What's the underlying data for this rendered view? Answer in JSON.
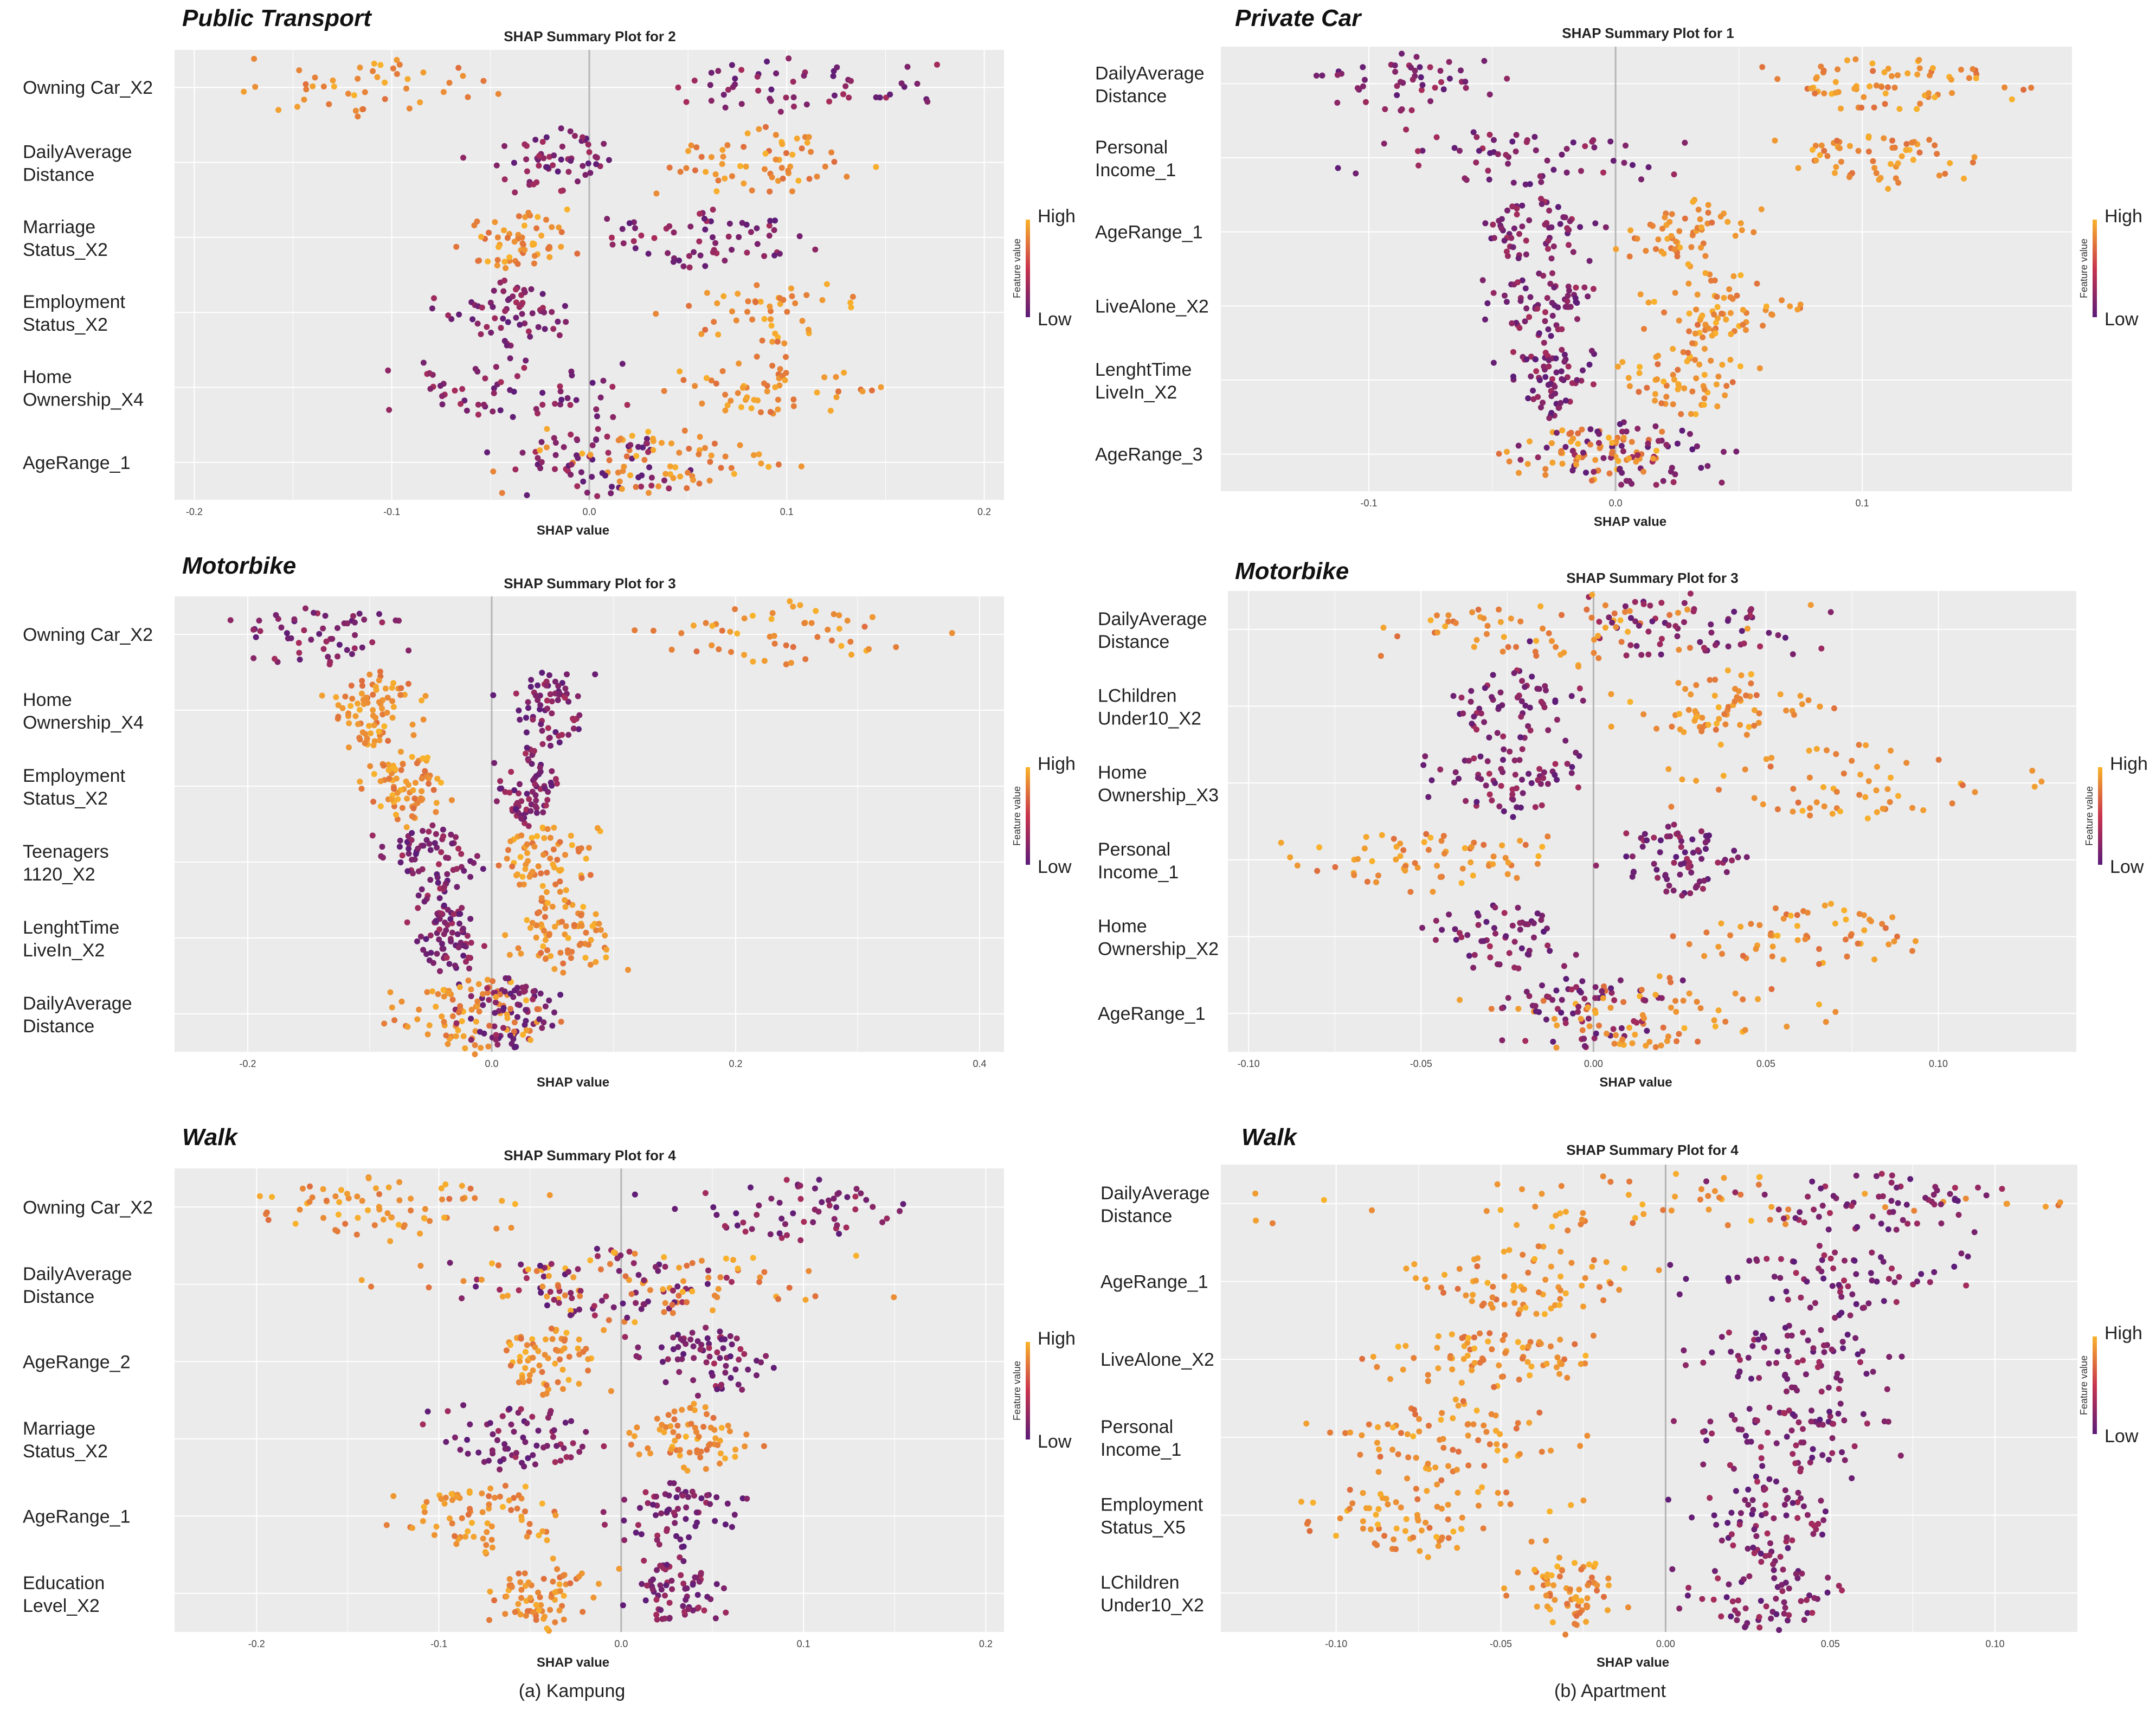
{
  "captions": [
    "(a) Kampung",
    "(b) Apartment"
  ],
  "colors": {
    "high": "#f9b32b",
    "mid": "#c8344e",
    "low": "#5b1c79",
    "panel_bg": "#ebebeb",
    "grid": "#ffffff",
    "zero_line": "#b5b5b5"
  },
  "chart_data": [
    {
      "type": "scatter",
      "title": "Public Transport",
      "subtitle": "SHAP Summary Plot for 2",
      "xlabel": "SHAP value",
      "xlim": [
        -0.21,
        0.21
      ],
      "xticks": [
        -0.2,
        -0.1,
        0.0,
        0.1,
        0.2
      ],
      "xtick_labels": [
        "-0.2",
        "-0.1",
        "0.0",
        "0.1",
        "0.2"
      ],
      "legend": {
        "title": "Feature value",
        "high": "High",
        "low": "Low",
        "position": "right"
      },
      "features": [
        {
          "name": "Owning Car_X2",
          "lines": [
            "Owning Car_X2"
          ],
          "high_range": [
            -0.195,
            -0.035
          ],
          "low_range": [
            0.005,
            0.19
          ],
          "n": 100,
          "spread": 0.42
        },
        {
          "name": "DailyAverage Distance",
          "lines": [
            "DailyAverage",
            "Distance"
          ],
          "high_range": [
            0.03,
            0.15
          ],
          "low_range": [
            -0.065,
            0.03
          ],
          "n": 120,
          "spread": 0.5
        },
        {
          "name": "Marriage Status_X2",
          "lines": [
            "Marriage",
            "Status_X2"
          ],
          "high_range": [
            -0.08,
            0.0
          ],
          "low_range": [
            0.0,
            0.12
          ],
          "n": 120,
          "spread": 0.5
        },
        {
          "name": "Employment Status_X2",
          "lines": [
            "Employment",
            "Status_X2"
          ],
          "high_range": [
            0.03,
            0.15
          ],
          "low_range": [
            -0.08,
            0.0
          ],
          "n": 110,
          "spread": 0.48
        },
        {
          "name": "Home Ownership_X4",
          "lines": [
            "Home",
            "Ownership_X4"
          ],
          "high_range": [
            0.03,
            0.16
          ],
          "low_range": [
            -0.11,
            0.03
          ],
          "n": 120,
          "spread": 0.48
        },
        {
          "name": "AgeRange_1",
          "lines": [
            "AgeRange_1"
          ],
          "high_range": [
            -0.05,
            0.12
          ],
          "low_range": [
            -0.06,
            0.07
          ],
          "n": 130,
          "spread": 0.5
        }
      ]
    },
    {
      "type": "scatter",
      "title": "Private Car",
      "subtitle": "SHAP Summary Plot for 1",
      "xlabel": "SHAP value",
      "xlim": [
        -0.16,
        0.185
      ],
      "xticks": [
        -0.1,
        0.0,
        0.1
      ],
      "xtick_labels": [
        "-0.1",
        "0.0",
        "0.1"
      ],
      "legend": {
        "title": "Feature value",
        "high": "High",
        "low": "Low",
        "position": "right"
      },
      "features": [
        {
          "name": "DailyAverage Distance",
          "lines": [
            "DailyAverage",
            "Distance"
          ],
          "high_range": [
            0.05,
            0.17
          ],
          "low_range": [
            -0.14,
            -0.03
          ],
          "n": 120,
          "spread": 0.42
        },
        {
          "name": "Personal Income_1",
          "lines": [
            "Personal",
            "Income_1"
          ],
          "high_range": [
            0.06,
            0.16
          ],
          "low_range": [
            -0.115,
            0.03
          ],
          "n": 120,
          "spread": 0.45
        },
        {
          "name": "AgeRange_1",
          "lines": [
            "AgeRange_1"
          ],
          "high_range": [
            0.0,
            0.06
          ],
          "low_range": [
            -0.065,
            0.0
          ],
          "n": 120,
          "spread": 0.48
        },
        {
          "name": "LiveAlone_X2",
          "lines": [
            "LiveAlone_X2"
          ],
          "high_range": [
            0.01,
            0.075
          ],
          "low_range": [
            -0.055,
            -0.005
          ],
          "n": 130,
          "spread": 0.55
        },
        {
          "name": "LenghtTime LiveIn_X2",
          "lines": [
            "LenghtTime",
            "LiveIn_X2"
          ],
          "high_range": [
            0.0,
            0.06
          ],
          "low_range": [
            -0.05,
            -0.005
          ],
          "n": 130,
          "spread": 0.55
        },
        {
          "name": "AgeRange_3",
          "lines": [
            "AgeRange_3"
          ],
          "high_range": [
            -0.05,
            0.03
          ],
          "low_range": [
            -0.04,
            0.06
          ],
          "n": 130,
          "spread": 0.5
        }
      ]
    },
    {
      "type": "scatter",
      "title": "Motorbike",
      "subtitle": "SHAP Summary Plot for 3",
      "xlabel": "SHAP value",
      "xlim": [
        -0.26,
        0.42
      ],
      "xticks": [
        -0.2,
        0.0,
        0.2,
        0.4
      ],
      "xtick_labels": [
        "-0.2",
        "0.0",
        "0.2",
        "0.4"
      ],
      "legend": {
        "title": "Feature value",
        "high": "High",
        "low": "Low",
        "position": "right"
      },
      "features": [
        {
          "name": "Owning Car_X2",
          "lines": [
            "Owning Car_X2"
          ],
          "high_range": [
            0.09,
            0.39
          ],
          "low_range": [
            -0.23,
            -0.05
          ],
          "n": 110,
          "spread": 0.45
        },
        {
          "name": "Home Ownership_X4",
          "lines": [
            "Home",
            "Ownership_X4"
          ],
          "high_range": [
            -0.14,
            -0.05
          ],
          "low_range": [
            0.0,
            0.09
          ],
          "n": 150,
          "spread": 0.55
        },
        {
          "name": "Employment Status_X2",
          "lines": [
            "Employment",
            "Status_X2"
          ],
          "high_range": [
            -0.11,
            -0.03
          ],
          "low_range": [
            0.0,
            0.06
          ],
          "n": 150,
          "spread": 0.55
        },
        {
          "name": "Teenagers 1120_X2",
          "lines": [
            "Teenagers",
            "1120_X2"
          ],
          "high_range": [
            -0.01,
            0.1
          ],
          "low_range": [
            -0.1,
            0.0
          ],
          "n": 150,
          "spread": 0.55
        },
        {
          "name": "LenghtTime LiveIn_X2",
          "lines": [
            "LenghtTime",
            "LiveIn_X2"
          ],
          "high_range": [
            0.0,
            0.12
          ],
          "low_range": [
            -0.07,
            0.0
          ],
          "n": 150,
          "spread": 0.55
        },
        {
          "name": "DailyAverage Distance",
          "lines": [
            "DailyAverage",
            "Distance"
          ],
          "high_range": [
            -0.09,
            0.06
          ],
          "low_range": [
            -0.03,
            0.06
          ],
          "n": 160,
          "spread": 0.55
        }
      ]
    },
    {
      "type": "scatter",
      "title": "Motorbike",
      "subtitle": "SHAP Summary Plot for 3",
      "xlabel": "SHAP value",
      "xlim": [
        -0.106,
        0.14
      ],
      "xticks": [
        -0.1,
        -0.05,
        0.0,
        0.05,
        0.1
      ],
      "xtick_labels": [
        "-0.10",
        "-0.05",
        "0.00",
        "0.05",
        "0.10"
      ],
      "legend": {
        "title": "Feature value",
        "high": "High",
        "low": "Low",
        "position": "right"
      },
      "features": [
        {
          "name": "DailyAverage Distance",
          "lines": [
            "DailyAverage",
            "Distance"
          ],
          "high_range": [
            -0.075,
            0.065
          ],
          "low_range": [
            -0.02,
            0.07
          ],
          "n": 130,
          "spread": 0.5
        },
        {
          "name": "LChildren Under10_X2",
          "lines": [
            "LChildren",
            "Under10_X2"
          ],
          "high_range": [
            0.005,
            0.07
          ],
          "low_range": [
            -0.05,
            0.0
          ],
          "n": 130,
          "spread": 0.55
        },
        {
          "name": "Home Ownership_X3",
          "lines": [
            "Home",
            "Ownership_X3"
          ],
          "high_range": [
            0.02,
            0.13
          ],
          "low_range": [
            -0.05,
            0.0
          ],
          "n": 130,
          "spread": 0.55
        },
        {
          "name": "Personal Income_1",
          "lines": [
            "Personal",
            "Income_1"
          ],
          "high_range": [
            -0.095,
            0.0
          ],
          "low_range": [
            0.0,
            0.05
          ],
          "n": 140,
          "spread": 0.5
        },
        {
          "name": "Home Ownership_X2",
          "lines": [
            "Home",
            "Ownership_X2"
          ],
          "high_range": [
            0.02,
            0.11
          ],
          "low_range": [
            -0.05,
            0.0
          ],
          "n": 120,
          "spread": 0.5
        },
        {
          "name": "AgeRange_1",
          "lines": [
            "AgeRange_1"
          ],
          "high_range": [
            -0.04,
            0.075
          ],
          "low_range": [
            -0.04,
            0.03
          ],
          "n": 140,
          "spread": 0.5
        }
      ]
    },
    {
      "type": "scatter",
      "title": "Walk",
      "subtitle": "SHAP Summary Plot for 4",
      "xlabel": "SHAP value",
      "xlim": [
        -0.245,
        0.21
      ],
      "xticks": [
        -0.2,
        -0.1,
        0.0,
        0.1,
        0.2
      ],
      "xtick_labels": [
        "-0.2",
        "-0.1",
        "0.0",
        "0.1",
        "0.2"
      ],
      "legend": {
        "title": "Feature value",
        "high": "High",
        "low": "Low",
        "position": "right"
      },
      "features": [
        {
          "name": "Owning Car_X2",
          "lines": [
            "Owning Car_X2"
          ],
          "high_range": [
            -0.225,
            -0.03
          ],
          "low_range": [
            0.005,
            0.19
          ],
          "n": 130,
          "spread": 0.45
        },
        {
          "name": "DailyAverage Distance",
          "lines": [
            "DailyAverage",
            "Distance"
          ],
          "high_range": [
            -0.15,
            0.16
          ],
          "low_range": [
            -0.1,
            0.08
          ],
          "n": 150,
          "spread": 0.5
        },
        {
          "name": "AgeRange_2",
          "lines": [
            "AgeRange_2"
          ],
          "high_range": [
            -0.08,
            0.0
          ],
          "low_range": [
            0.0,
            0.09
          ],
          "n": 140,
          "spread": 0.5
        },
        {
          "name": "Marriage Status_X2",
          "lines": [
            "Marriage",
            "Status_X2"
          ],
          "high_range": [
            0.0,
            0.08
          ],
          "low_range": [
            -0.11,
            0.0
          ],
          "n": 140,
          "spread": 0.5
        },
        {
          "name": "AgeRange_1",
          "lines": [
            "AgeRange_1"
          ],
          "high_range": [
            -0.13,
            -0.02
          ],
          "low_range": [
            -0.01,
            0.07
          ],
          "n": 140,
          "spread": 0.5
        },
        {
          "name": "Education Level_X2",
          "lines": [
            "Education",
            "Level_X2"
          ],
          "high_range": [
            -0.08,
            0.0
          ],
          "low_range": [
            0.0,
            0.06
          ],
          "n": 140,
          "spread": 0.5
        }
      ]
    },
    {
      "type": "scatter",
      "title": "Walk",
      "subtitle": "SHAP Summary Plot for 4",
      "xlabel": "SHAP value",
      "xlim": [
        -0.135,
        0.125
      ],
      "xticks": [
        -0.1,
        -0.05,
        0.0,
        0.05,
        0.1
      ],
      "xtick_labels": [
        "-0.10",
        "-0.05",
        "0.00",
        "0.05",
        "0.10"
      ],
      "legend": {
        "title": "Feature value",
        "high": "High",
        "low": "Low",
        "position": "right"
      },
      "features": [
        {
          "name": "DailyAverage Distance",
          "lines": [
            "DailyAverage",
            "Distance"
          ],
          "high_range": [
            -0.125,
            0.12
          ],
          "low_range": [
            0.01,
            0.11
          ],
          "n": 130,
          "spread": 0.45
        },
        {
          "name": "AgeRange_1",
          "lines": [
            "AgeRange_1"
          ],
          "high_range": [
            -0.08,
            0.0
          ],
          "low_range": [
            0.0,
            0.1
          ],
          "n": 150,
          "spread": 0.5
        },
        {
          "name": "LiveAlone_X2",
          "lines": [
            "LiveAlone_X2"
          ],
          "high_range": [
            -0.095,
            -0.01
          ],
          "low_range": [
            0.005,
            0.08
          ],
          "n": 150,
          "spread": 0.5
        },
        {
          "name": "Personal Income_1",
          "lines": [
            "Personal",
            "Income_1"
          ],
          "high_range": [
            -0.11,
            -0.02
          ],
          "low_range": [
            -0.005,
            0.08
          ],
          "n": 150,
          "spread": 0.5
        },
        {
          "name": "Employment Status_X5",
          "lines": [
            "Employment",
            "Status_X5"
          ],
          "high_range": [
            -0.125,
            -0.02
          ],
          "low_range": [
            0.0,
            0.06
          ],
          "n": 150,
          "spread": 0.55
        },
        {
          "name": "LChildren Under10_X2",
          "lines": [
            "LChildren",
            "Under10_X2"
          ],
          "high_range": [
            -0.05,
            -0.01
          ],
          "low_range": [
            0.0,
            0.06
          ],
          "n": 140,
          "spread": 0.55
        }
      ]
    }
  ]
}
